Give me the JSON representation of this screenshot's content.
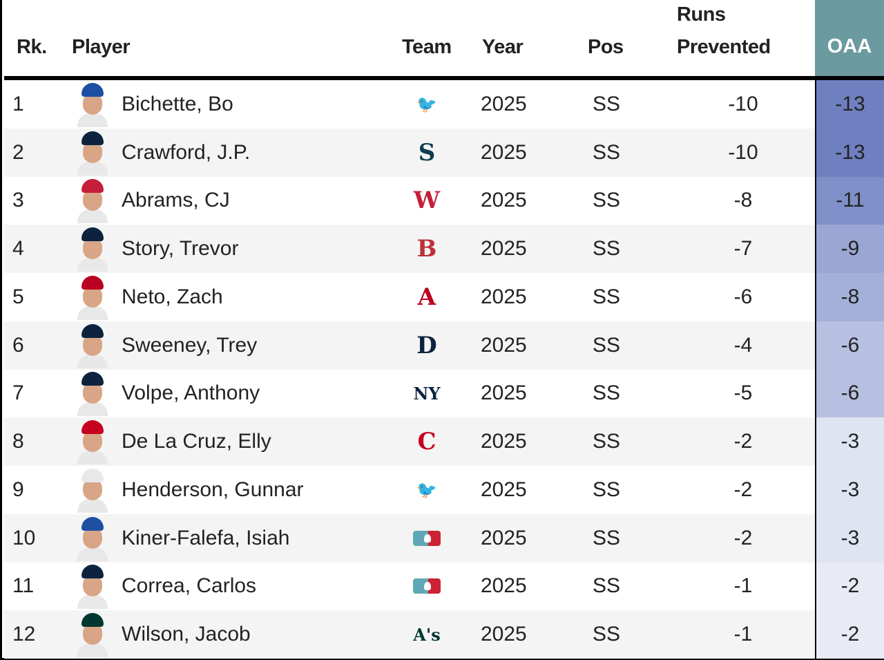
{
  "headers": {
    "rank": "Rk.",
    "player": "Player",
    "team": "Team",
    "year": "Year",
    "pos": "Pos",
    "runs_line1": "Runs",
    "runs_line2": "Prevented",
    "oaa": "OAA"
  },
  "rows": [
    {
      "rank": "1",
      "name": "Bichette, Bo",
      "year": "2025",
      "pos": "SS",
      "runs": "-10",
      "oaa": "-13",
      "oaa_color": "#6e80c0",
      "team_icon": "blue-jays-logo-icon",
      "team_glyph": "🐦",
      "team_color": "#1d4fa3",
      "cap_color": "#1d4fa3"
    },
    {
      "rank": "2",
      "name": "Crawford, J.P.",
      "year": "2025",
      "pos": "SS",
      "runs": "-10",
      "oaa": "-13",
      "oaa_color": "#6e80c0",
      "team_icon": "mariners-logo-icon",
      "team_glyph": "S",
      "team_color": "#0c3c4f",
      "cap_color": "#0c2340"
    },
    {
      "rank": "3",
      "name": "Abrams, CJ",
      "year": "2025",
      "pos": "SS",
      "runs": "-8",
      "oaa": "-11",
      "oaa_color": "#7f90c8",
      "team_icon": "nationals-logo-icon",
      "team_glyph": "W",
      "team_color": "#c41e3a",
      "cap_color": "#c41e3a"
    },
    {
      "rank": "4",
      "name": "Story, Trevor",
      "year": "2025",
      "pos": "SS",
      "runs": "-7",
      "oaa": "-9",
      "oaa_color": "#9aa7d4",
      "team_icon": "red-sox-logo-icon",
      "team_glyph": "B",
      "team_color": "#bd3039",
      "cap_color": "#0c2340"
    },
    {
      "rank": "5",
      "name": "Neto, Zach",
      "year": "2025",
      "pos": "SS",
      "runs": "-6",
      "oaa": "-8",
      "oaa_color": "#a4b0d8",
      "team_icon": "angels-logo-icon",
      "team_glyph": "A",
      "team_color": "#ba0021",
      "cap_color": "#ba0021"
    },
    {
      "rank": "6",
      "name": "Sweeney, Trey",
      "year": "2025",
      "pos": "SS",
      "runs": "-4",
      "oaa": "-6",
      "oaa_color": "#b6c0e0",
      "team_icon": "tigers-logo-icon",
      "team_glyph": "D",
      "team_color": "#0c2340",
      "cap_color": "#0c2340"
    },
    {
      "rank": "7",
      "name": "Volpe, Anthony",
      "year": "2025",
      "pos": "SS",
      "runs": "-5",
      "oaa": "-6",
      "oaa_color": "#b6c0e0",
      "team_icon": "yankees-logo-icon",
      "team_glyph": "NY",
      "team_color": "#0c2340",
      "cap_color": "#0c2340"
    },
    {
      "rank": "8",
      "name": "De La Cruz, Elly",
      "year": "2025",
      "pos": "SS",
      "runs": "-2",
      "oaa": "-3",
      "oaa_color": "#dfe4f1",
      "team_icon": "reds-logo-icon",
      "team_glyph": "C",
      "team_color": "#c6011f",
      "cap_color": "#c6011f"
    },
    {
      "rank": "9",
      "name": "Henderson, Gunnar",
      "year": "2025",
      "pos": "SS",
      "runs": "-2",
      "oaa": "-3",
      "oaa_color": "#dfe4f1",
      "team_icon": "orioles-logo-icon",
      "team_glyph": "🐦",
      "team_color": "#df4601",
      "cap_color": "#e8e8e8"
    },
    {
      "rank": "10",
      "name": "Kiner-Falefa, Isiah",
      "year": "2025",
      "pos": "SS",
      "runs": "-2",
      "oaa": "-3",
      "oaa_color": "#dfe4f1",
      "team_icon": "mlb-logo-icon",
      "team_glyph": "",
      "team_color": "#5fa8b5",
      "cap_color": "#1d4fa3"
    },
    {
      "rank": "11",
      "name": "Correa, Carlos",
      "year": "2025",
      "pos": "SS",
      "runs": "-1",
      "oaa": "-2",
      "oaa_color": "#e8ebf4",
      "team_icon": "mlb-logo-icon",
      "team_glyph": "",
      "team_color": "#5fa8b5",
      "cap_color": "#0c2340"
    },
    {
      "rank": "12",
      "name": "Wilson, Jacob",
      "year": "2025",
      "pos": "SS",
      "runs": "-1",
      "oaa": "-2",
      "oaa_color": "#e8ebf4",
      "team_icon": "athletics-logo-icon",
      "team_glyph": "A's",
      "team_color": "#003831",
      "cap_color": "#003831"
    }
  ]
}
